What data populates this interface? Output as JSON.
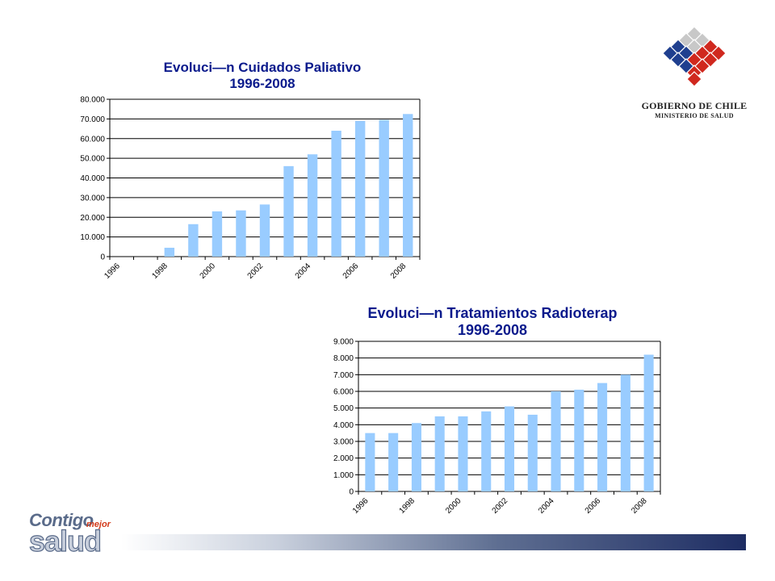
{
  "chart_data": [
    {
      "type": "bar",
      "title": "Evoluci—n Cuidados Paliativo",
      "subtitle": "1996-2008",
      "categories": [
        "1996",
        "1997",
        "1998",
        "1999",
        "2000",
        "2001",
        "2002",
        "2003",
        "2004",
        "2005",
        "2006",
        "2007",
        "2008"
      ],
      "tick_labels": [
        "1996",
        "",
        "1998",
        "",
        "2000",
        "",
        "2002",
        "",
        "2004",
        "",
        "2006",
        "",
        "2008"
      ],
      "values": [
        0,
        0,
        4500,
        16500,
        23000,
        23500,
        26500,
        46000,
        52000,
        64000,
        69000,
        69500,
        72500
      ],
      "ylim": [
        0,
        80000
      ],
      "yticks": [
        "0",
        "10.000",
        "20.000",
        "30.000",
        "40.000",
        "50.000",
        "60.000",
        "70.000",
        "80.000"
      ],
      "bar_color": "#99ccff",
      "grid": true,
      "xlabel": "",
      "ylabel": ""
    },
    {
      "type": "bar",
      "title": "Evoluci—n Tratamientos Radioterap",
      "subtitle": "1996-2008",
      "categories": [
        "1996",
        "1997",
        "1998",
        "1999",
        "2000",
        "2001",
        "2002",
        "2003",
        "2004",
        "2005",
        "2006",
        "2007",
        "2008"
      ],
      "tick_labels": [
        "1996",
        "",
        "1998",
        "",
        "2000",
        "",
        "2002",
        "",
        "2004",
        "",
        "2006",
        "",
        "2008"
      ],
      "values": [
        3500,
        3500,
        4100,
        4500,
        4500,
        4800,
        5100,
        4600,
        6000,
        6100,
        6500,
        7000,
        8200
      ],
      "ylim": [
        0,
        9000
      ],
      "yticks": [
        "0",
        "1.000",
        "2.000",
        "3.000",
        "4.000",
        "5.000",
        "6.000",
        "7.000",
        "8.000",
        "9.000"
      ],
      "bar_color": "#99ccff",
      "grid": true,
      "xlabel": "",
      "ylabel": ""
    }
  ],
  "logo_gobierno": {
    "line1": "GOBIERNO DE CHILE",
    "line2": "MINISTERIO DE SALUD",
    "colors": [
      "#c8c8c8",
      "#1f3f8f",
      "#d0281e"
    ]
  },
  "logo_contigo": {
    "word1": "Contigo",
    "word2": "mejor",
    "word3": "salud"
  }
}
